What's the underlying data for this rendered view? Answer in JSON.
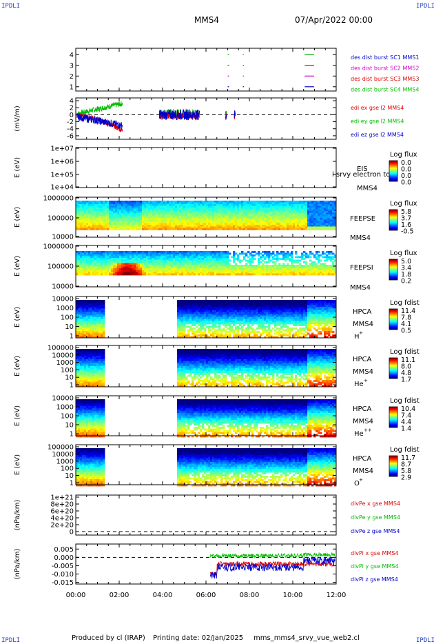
{
  "header": {
    "corner_label": "IPDLI",
    "spacecraft": "MMS4",
    "date_time": "07/Apr/2022 00:00"
  },
  "footer": {
    "produced_by": "Produced by cl (IRAP)",
    "printing_date": "Printing date: 02/Jan/2025",
    "filename": "mms_mms4_srvy_vue_web2.cl"
  },
  "time_axis": {
    "range_hours": [
      0,
      12
    ],
    "tick_labels": [
      "00:00",
      "02:00",
      "04:00",
      "06:00",
      "08:00",
      "10:00",
      "12:00"
    ]
  },
  "colors": {
    "mms1": "#0000cc",
    "mms2": "#cc00cc",
    "mms3": "#dd0000",
    "mms4": "#00bb00",
    "x": "#dd0000",
    "y": "#00bb00",
    "z": "#0000cc"
  },
  "chart_data": [
    {
      "type": "scatter",
      "id": "burst",
      "ylim": [
        0.6,
        4.6
      ],
      "y_ticks": [
        "1",
        "2",
        "3",
        "4"
      ],
      "legend": [
        "des dist burst SC1 MMS1",
        "des dist burst SC2 MMS2",
        "des dist burst SC3 MMS3",
        "des dist burst SC4 MMS4"
      ],
      "series": [
        {
          "level": 4,
          "segments": [
            [
              7.0,
              7.03
            ],
            [
              7.7,
              7.72
            ],
            [
              10.55,
              10.95
            ]
          ]
        },
        {
          "level": 3,
          "segments": [
            [
              7.0,
              7.03
            ],
            [
              7.7,
              7.72
            ],
            [
              10.55,
              10.95
            ]
          ]
        },
        {
          "level": 2,
          "segments": [
            [
              7.0,
              7.03
            ],
            [
              7.7,
              7.72
            ],
            [
              10.55,
              10.95
            ]
          ]
        },
        {
          "level": 1,
          "segments": [
            [
              7.0,
              7.03
            ],
            [
              7.7,
              7.72
            ],
            [
              10.55,
              10.95
            ]
          ]
        }
      ]
    },
    {
      "type": "line",
      "id": "edi",
      "ylabel": "(mV/m)",
      "ylim": [
        -7,
        4.8
      ],
      "y_ticks": [
        "4",
        "2",
        "0",
        "-2",
        "-4",
        "-6"
      ],
      "legend": [
        "edi ex gse l2 MMS4",
        "edi ey gse l2 MMS4",
        "edi ez gse l2 MMS4"
      ]
    },
    {
      "type": "heatmap",
      "id": "eis",
      "ylabel": "E (eV)",
      "y_ticks": [
        "1e+07",
        "1e+06",
        "1e+05",
        "1e+04"
      ],
      "labels": [
        "EIS",
        "MMS4"
      ],
      "overlay_text": "l srvy electron to",
      "cbar_title": "Log flux",
      "cbar_ticks": [
        "0.0",
        "0.0",
        "0.0",
        "0.0"
      ]
    },
    {
      "type": "heatmap",
      "id": "feepse",
      "ylabel": "E (eV)",
      "y_ticks": [
        "1000000",
        "100000",
        "10000"
      ],
      "labels": [
        "FEEPSE",
        "MMS4"
      ],
      "cbar_title": "Log flux",
      "cbar_ticks": [
        "5.8",
        "3.7",
        "1.6",
        "-0.5"
      ]
    },
    {
      "type": "heatmap",
      "id": "feepsi",
      "ylabel": "E (eV)",
      "y_ticks": [
        "1000000",
        "100000",
        "10000"
      ],
      "labels": [
        "FEEPSI",
        "MMS4"
      ],
      "cbar_title": "Log flux",
      "cbar_ticks": [
        "5.0",
        "3.4",
        "1.8",
        "0.2"
      ]
    },
    {
      "type": "heatmap",
      "id": "hpca_h",
      "ylabel": "E (eV)",
      "y_ticks": [
        "10000",
        "1000",
        "100",
        "10",
        "1"
      ],
      "labels": [
        "HPCA",
        "MMS4"
      ],
      "species": "H",
      "species_charge": "+",
      "cbar_title": "Log fdist",
      "cbar_ticks": [
        "11.4",
        "7.8",
        "4.1",
        "0.5"
      ],
      "gap_hours": [
        1.25,
        4.6
      ]
    },
    {
      "type": "heatmap",
      "id": "hpca_he",
      "ylabel": "E (eV)",
      "y_ticks": [
        "100000",
        "10000",
        "1000",
        "100",
        "10",
        "1"
      ],
      "labels": [
        "HPCA",
        "MMS4"
      ],
      "species": "He",
      "species_charge": "+",
      "cbar_title": "Log fdist",
      "cbar_ticks": [
        "11.1",
        "8.0",
        "4.8",
        "1.7"
      ],
      "gap_hours": [
        1.25,
        4.6
      ]
    },
    {
      "type": "heatmap",
      "id": "hpca_hepp",
      "ylabel": "E (eV)",
      "y_ticks": [
        "10000",
        "1000",
        "100",
        "10",
        "1"
      ],
      "labels": [
        "HPCA",
        "MMS4"
      ],
      "species": "He",
      "species_charge": "++",
      "cbar_title": "Log fdist",
      "cbar_ticks": [
        "10.4",
        "7.4",
        "4.4",
        "1.4"
      ],
      "gap_hours": [
        1.25,
        4.6
      ]
    },
    {
      "type": "heatmap",
      "id": "hpca_o",
      "ylabel": "E (eV)",
      "y_ticks": [
        "100000",
        "10000",
        "1000",
        "100",
        "10",
        "1"
      ],
      "labels": [
        "HPCA",
        "MMS4"
      ],
      "species": "O",
      "species_charge": "+",
      "cbar_title": "Log fdist",
      "cbar_ticks": [
        "11.7",
        "8.7",
        "5.8",
        "2.9"
      ],
      "gap_hours": [
        1.25,
        4.6
      ]
    },
    {
      "type": "line",
      "id": "divpe",
      "ylabel": "(nPa/km)",
      "y_ticks": [
        "1e+21",
        "8e+20",
        "6e+20",
        "4e+20",
        "2e+20",
        "0"
      ],
      "legend": [
        "divPe x gse MMS4",
        "divPe y gse MMS4",
        "divPe z gse MMS4"
      ]
    },
    {
      "type": "line",
      "id": "divpi",
      "ylabel": "(nPa/km)",
      "ylim": [
        -0.016,
        0.008
      ],
      "y_ticks": [
        "0.005",
        "0.000",
        "-0.005",
        "-0.010",
        "-0.015"
      ],
      "legend": [
        "divPi x gse MMS4",
        "divPi y gse MMS4",
        "divPi z gse MMS4"
      ]
    }
  ]
}
